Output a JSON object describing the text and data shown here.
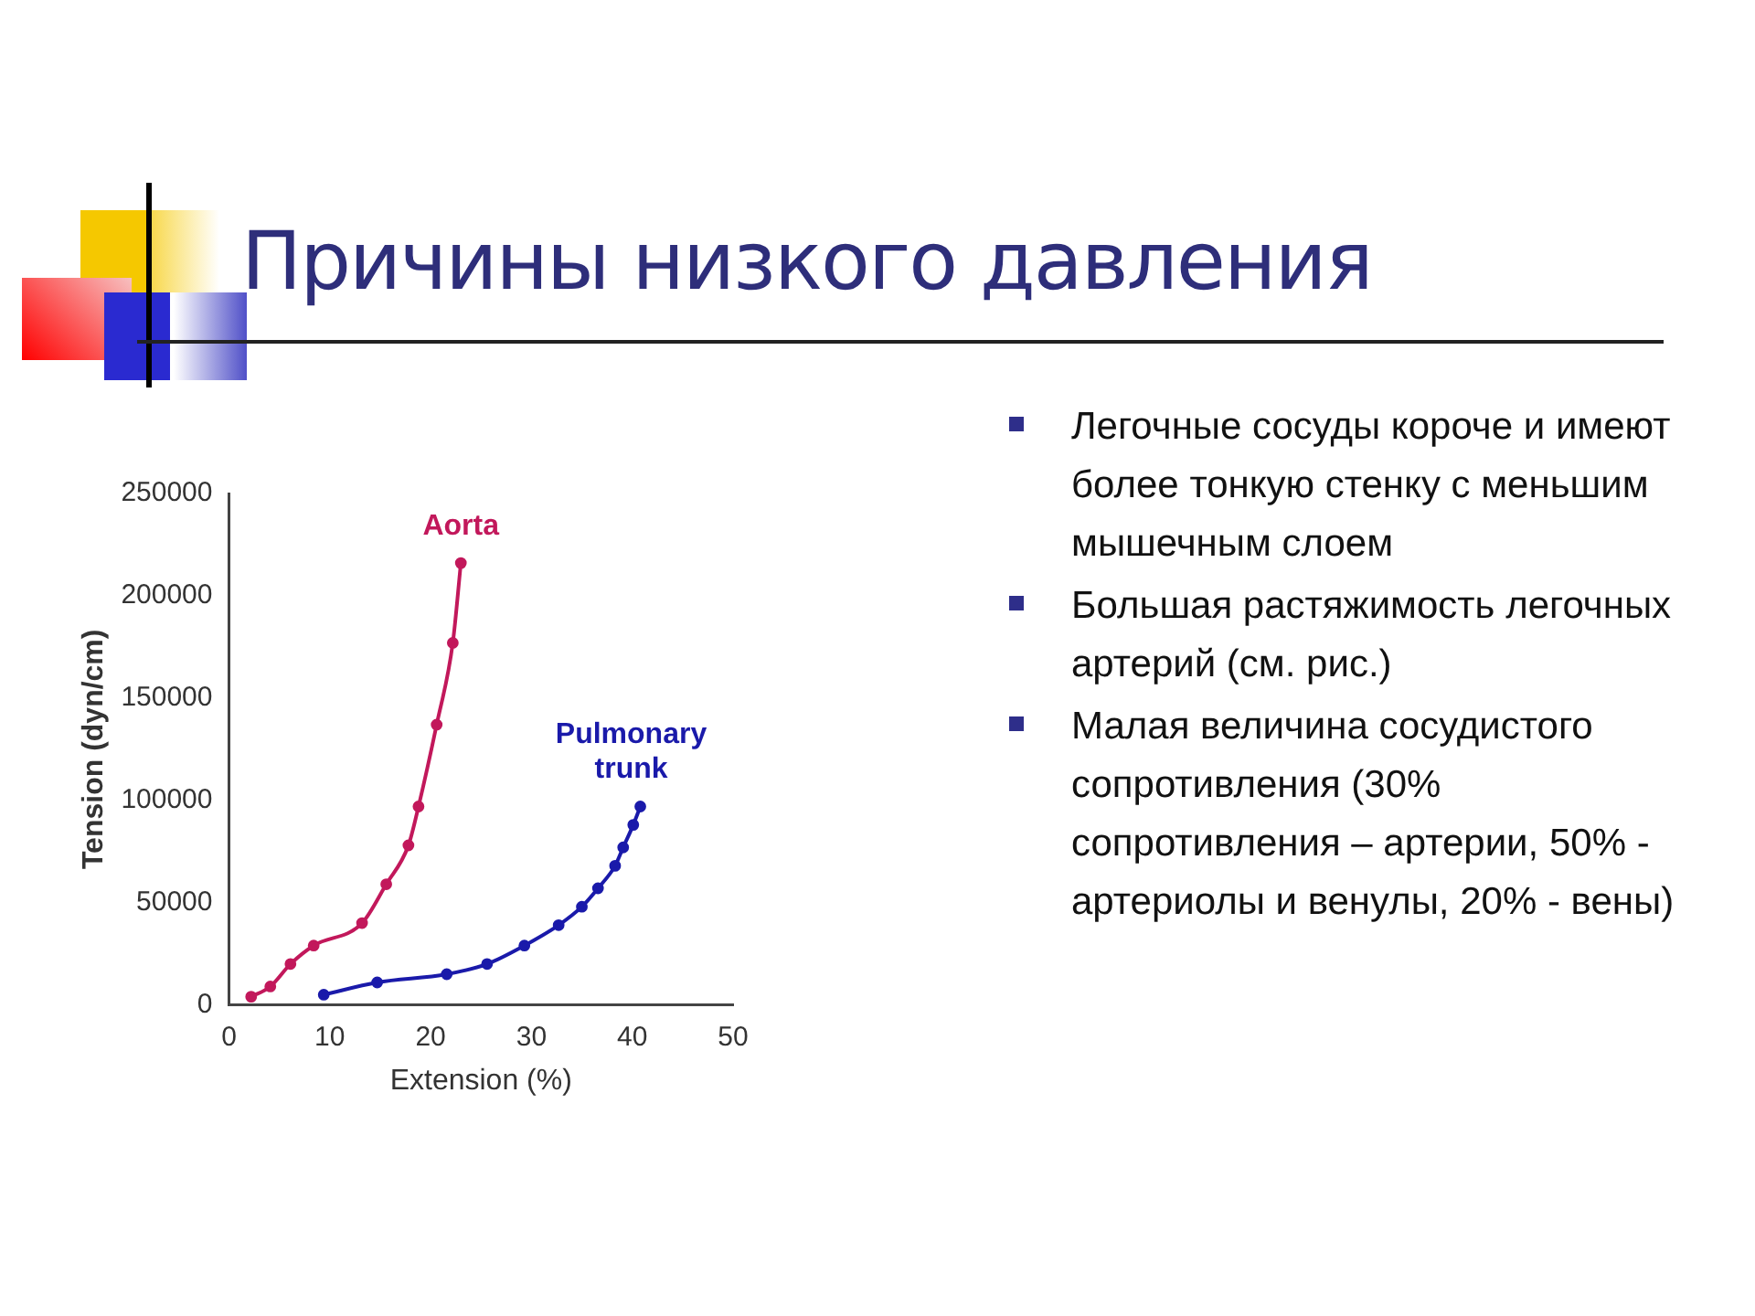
{
  "chart_data": {
    "type": "line",
    "title": "Причины низкого давления",
    "xlabel": "Extension (%)",
    "ylabel": "Tension (dyn/cm)",
    "series": [
      {
        "name": "Aorta",
        "color": "#c2185b",
        "x": [
          2.2,
          4.1,
          6.1,
          8.4,
          13.2,
          15.6,
          17.8,
          18.8,
          20.6,
          22.2,
          23.0
        ],
        "values": [
          4000,
          9000,
          20000,
          29000,
          40000,
          59000,
          78000,
          97000,
          137000,
          177000,
          216000
        ]
      },
      {
        "name": "Pulmonary trunk",
        "color": "#1a1aaa",
        "x": [
          9.4,
          14.7,
          21.6,
          25.6,
          29.3,
          32.7,
          35.0,
          36.6,
          38.3,
          39.1,
          40.1,
          40.8
        ],
        "values": [
          5000,
          11000,
          15000,
          20000,
          29000,
          39000,
          48000,
          57000,
          68000,
          77000,
          88000,
          97000
        ]
      }
    ],
    "xlim": [
      0,
      50
    ],
    "xticks": [
      0,
      10,
      20,
      30,
      40,
      50
    ],
    "ylim": [
      0,
      250000
    ],
    "yticks": [
      0,
      50000,
      100000,
      150000,
      200000,
      250000
    ],
    "grid": false,
    "legend": false,
    "marker": "circle",
    "line_style": "solid",
    "annotations": [
      "Легочные сосуды короче и имеют более тонкую стенку с меньшим мышечным слоем",
      "Большая растяжимость легочных артерий (см. рис.)",
      "Малая величина сосудистого сопротивления (30% сопротивления – артерии, 50% - артериолы и венулы, 20% - вены)"
    ]
  }
}
